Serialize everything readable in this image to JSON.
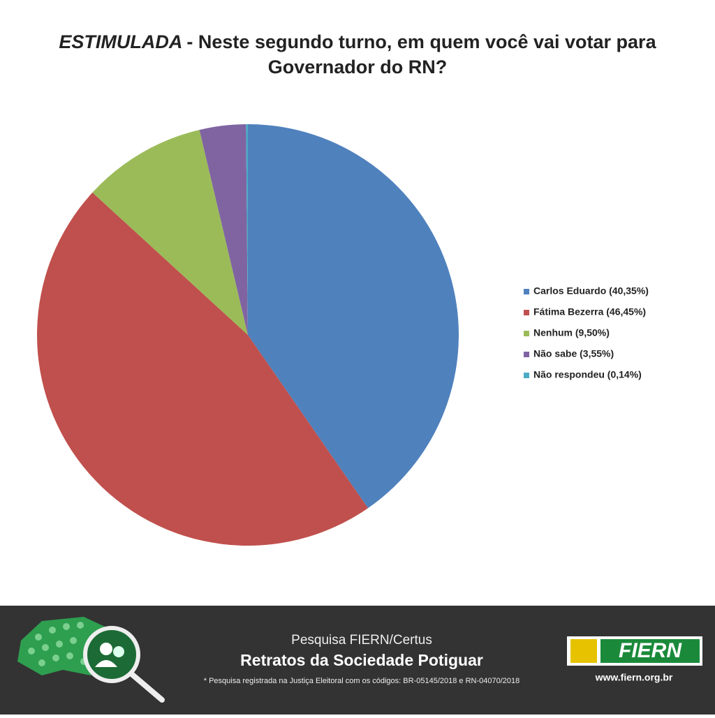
{
  "chart_data": {
    "type": "pie",
    "title_prefix": "ESTIMULADA",
    "title": "- Neste segundo turno, em quem você vai votar para Governador do RN?",
    "categories": [
      "Carlos Eduardo (40,35%)",
      "Fátima Bezerra (46,45%)",
      "Nenhum (9,50%)",
      "Não sabe (3,55%)",
      "Não respondeu (0,14%)"
    ],
    "values": [
      40.35,
      46.45,
      9.5,
      3.55,
      0.14
    ],
    "colors": [
      "#4f81bd",
      "#c0504d",
      "#9bbb59",
      "#8064a2",
      "#4bacc6"
    ],
    "legend": "right"
  },
  "footer": {
    "subtitle": "Pesquisa FIERN/Certus",
    "title": "Retratos da Sociedade Potiguar",
    "note": "* Pesquisa registrada na Justiça Eleitoral com os códigos: BR-05145/2018 e RN-04070/2018",
    "logo": "FIERN",
    "url": "www.fiern.org.br"
  }
}
